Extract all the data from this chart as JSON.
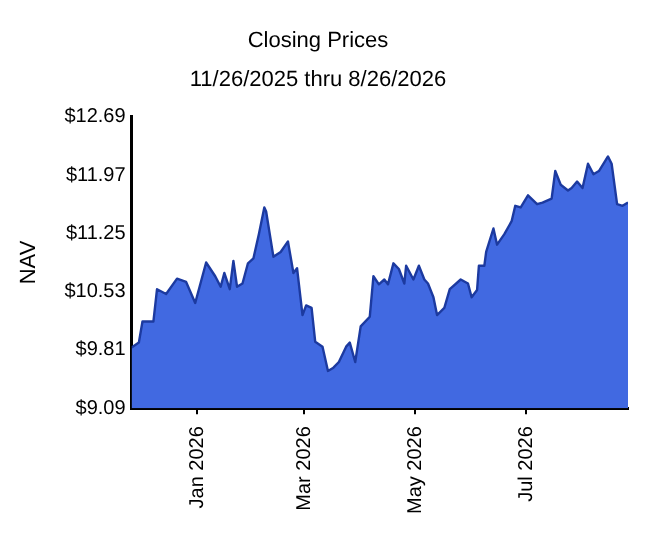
{
  "chart_data": {
    "type": "area",
    "title": "Closing Prices",
    "subtitle": "11/26/2025 thru 8/26/2026",
    "ylabel": "NAV",
    "x": [
      "2025-11-26",
      "2025-11-30",
      "2025-12-02",
      "2025-12-08",
      "2025-12-10",
      "2025-12-15",
      "2025-12-21",
      "2025-12-26",
      "2025-12-31",
      "2026-01-06",
      "2026-01-11",
      "2026-01-14",
      "2026-01-16",
      "2026-01-19",
      "2026-01-21",
      "2026-01-23",
      "2026-01-26",
      "2026-01-29",
      "2026-02-01",
      "2026-02-04",
      "2026-02-07",
      "2026-02-08",
      "2026-02-12",
      "2026-02-16",
      "2026-02-20",
      "2026-02-23",
      "2026-02-25",
      "2026-02-28",
      "2026-03-02",
      "2026-03-05",
      "2026-03-07",
      "2026-03-11",
      "2026-03-14",
      "2026-03-17",
      "2026-03-20",
      "2026-03-24",
      "2026-03-26",
      "2026-03-29",
      "2026-04-01",
      "2026-04-06",
      "2026-04-08",
      "2026-04-11",
      "2026-04-14",
      "2026-04-16",
      "2026-04-19",
      "2026-04-22",
      "2026-04-25",
      "2026-04-26",
      "2026-04-30",
      "2026-05-03",
      "2026-05-06",
      "2026-05-08",
      "2026-05-11",
      "2026-05-13",
      "2026-05-17",
      "2026-05-20",
      "2026-05-26",
      "2026-05-30",
      "2026-06-01",
      "2026-06-04",
      "2026-06-05",
      "2026-06-08",
      "2026-06-09",
      "2026-06-13",
      "2026-06-15",
      "2026-06-19",
      "2026-06-23",
      "2026-06-25",
      "2026-06-28",
      "2026-07-02",
      "2026-07-07",
      "2026-07-10",
      "2026-07-15",
      "2026-07-17",
      "2026-07-20",
      "2026-07-24",
      "2026-07-26",
      "2026-07-29",
      "2026-08-01",
      "2026-08-04",
      "2026-08-07",
      "2026-08-10",
      "2026-08-15",
      "2026-08-17",
      "2026-08-20",
      "2026-08-23",
      "2026-08-26"
    ],
    "series": [
      {
        "color": "#4169e1",
        "values": [
          9.84,
          9.9,
          10.16,
          10.16,
          10.56,
          10.5,
          10.69,
          10.65,
          10.39,
          10.89,
          10.72,
          10.59,
          10.76,
          10.56,
          10.91,
          10.59,
          10.63,
          10.88,
          10.94,
          11.24,
          11.57,
          11.52,
          10.96,
          11.02,
          11.15,
          10.76,
          10.82,
          10.24,
          10.36,
          10.33,
          9.91,
          9.85,
          9.55,
          9.59,
          9.66,
          9.85,
          9.9,
          9.66,
          10.1,
          10.22,
          10.72,
          10.62,
          10.68,
          10.62,
          10.88,
          10.81,
          10.63,
          10.85,
          10.68,
          10.85,
          10.68,
          10.63,
          10.46,
          10.24,
          10.33,
          10.56,
          10.68,
          10.63,
          10.46,
          10.55,
          10.85,
          10.85,
          11.02,
          11.31,
          11.11,
          11.24,
          11.4,
          11.59,
          11.57,
          11.72,
          11.61,
          11.63,
          11.68,
          12.02,
          11.85,
          11.78,
          11.81,
          11.89,
          11.81,
          12.11,
          11.98,
          12.02,
          12.2,
          12.11,
          11.61,
          11.59,
          11.63
        ]
      }
    ],
    "xlim": [
      "2025-11-26",
      "2026-08-26"
    ],
    "xticks": [
      {
        "value": "2026-01-01",
        "label": "Jan 2026"
      },
      {
        "value": "2026-03-01",
        "label": "Mar 2026"
      },
      {
        "value": "2026-05-01",
        "label": "May 2026"
      },
      {
        "value": "2026-07-01",
        "label": "Jul 2026"
      }
    ],
    "ylim": [
      9.09,
      12.69
    ],
    "yticks": [
      {
        "value": 9.09,
        "label": "$9.09"
      },
      {
        "value": 9.81,
        "label": "$9.81"
      },
      {
        "value": 10.53,
        "label": "$10.53"
      },
      {
        "value": 11.25,
        "label": "$11.25"
      },
      {
        "value": 11.97,
        "label": "$11.97"
      },
      {
        "value": 12.69,
        "label": "$12.69"
      }
    ],
    "grid": false,
    "legend": false,
    "marker": "none"
  }
}
